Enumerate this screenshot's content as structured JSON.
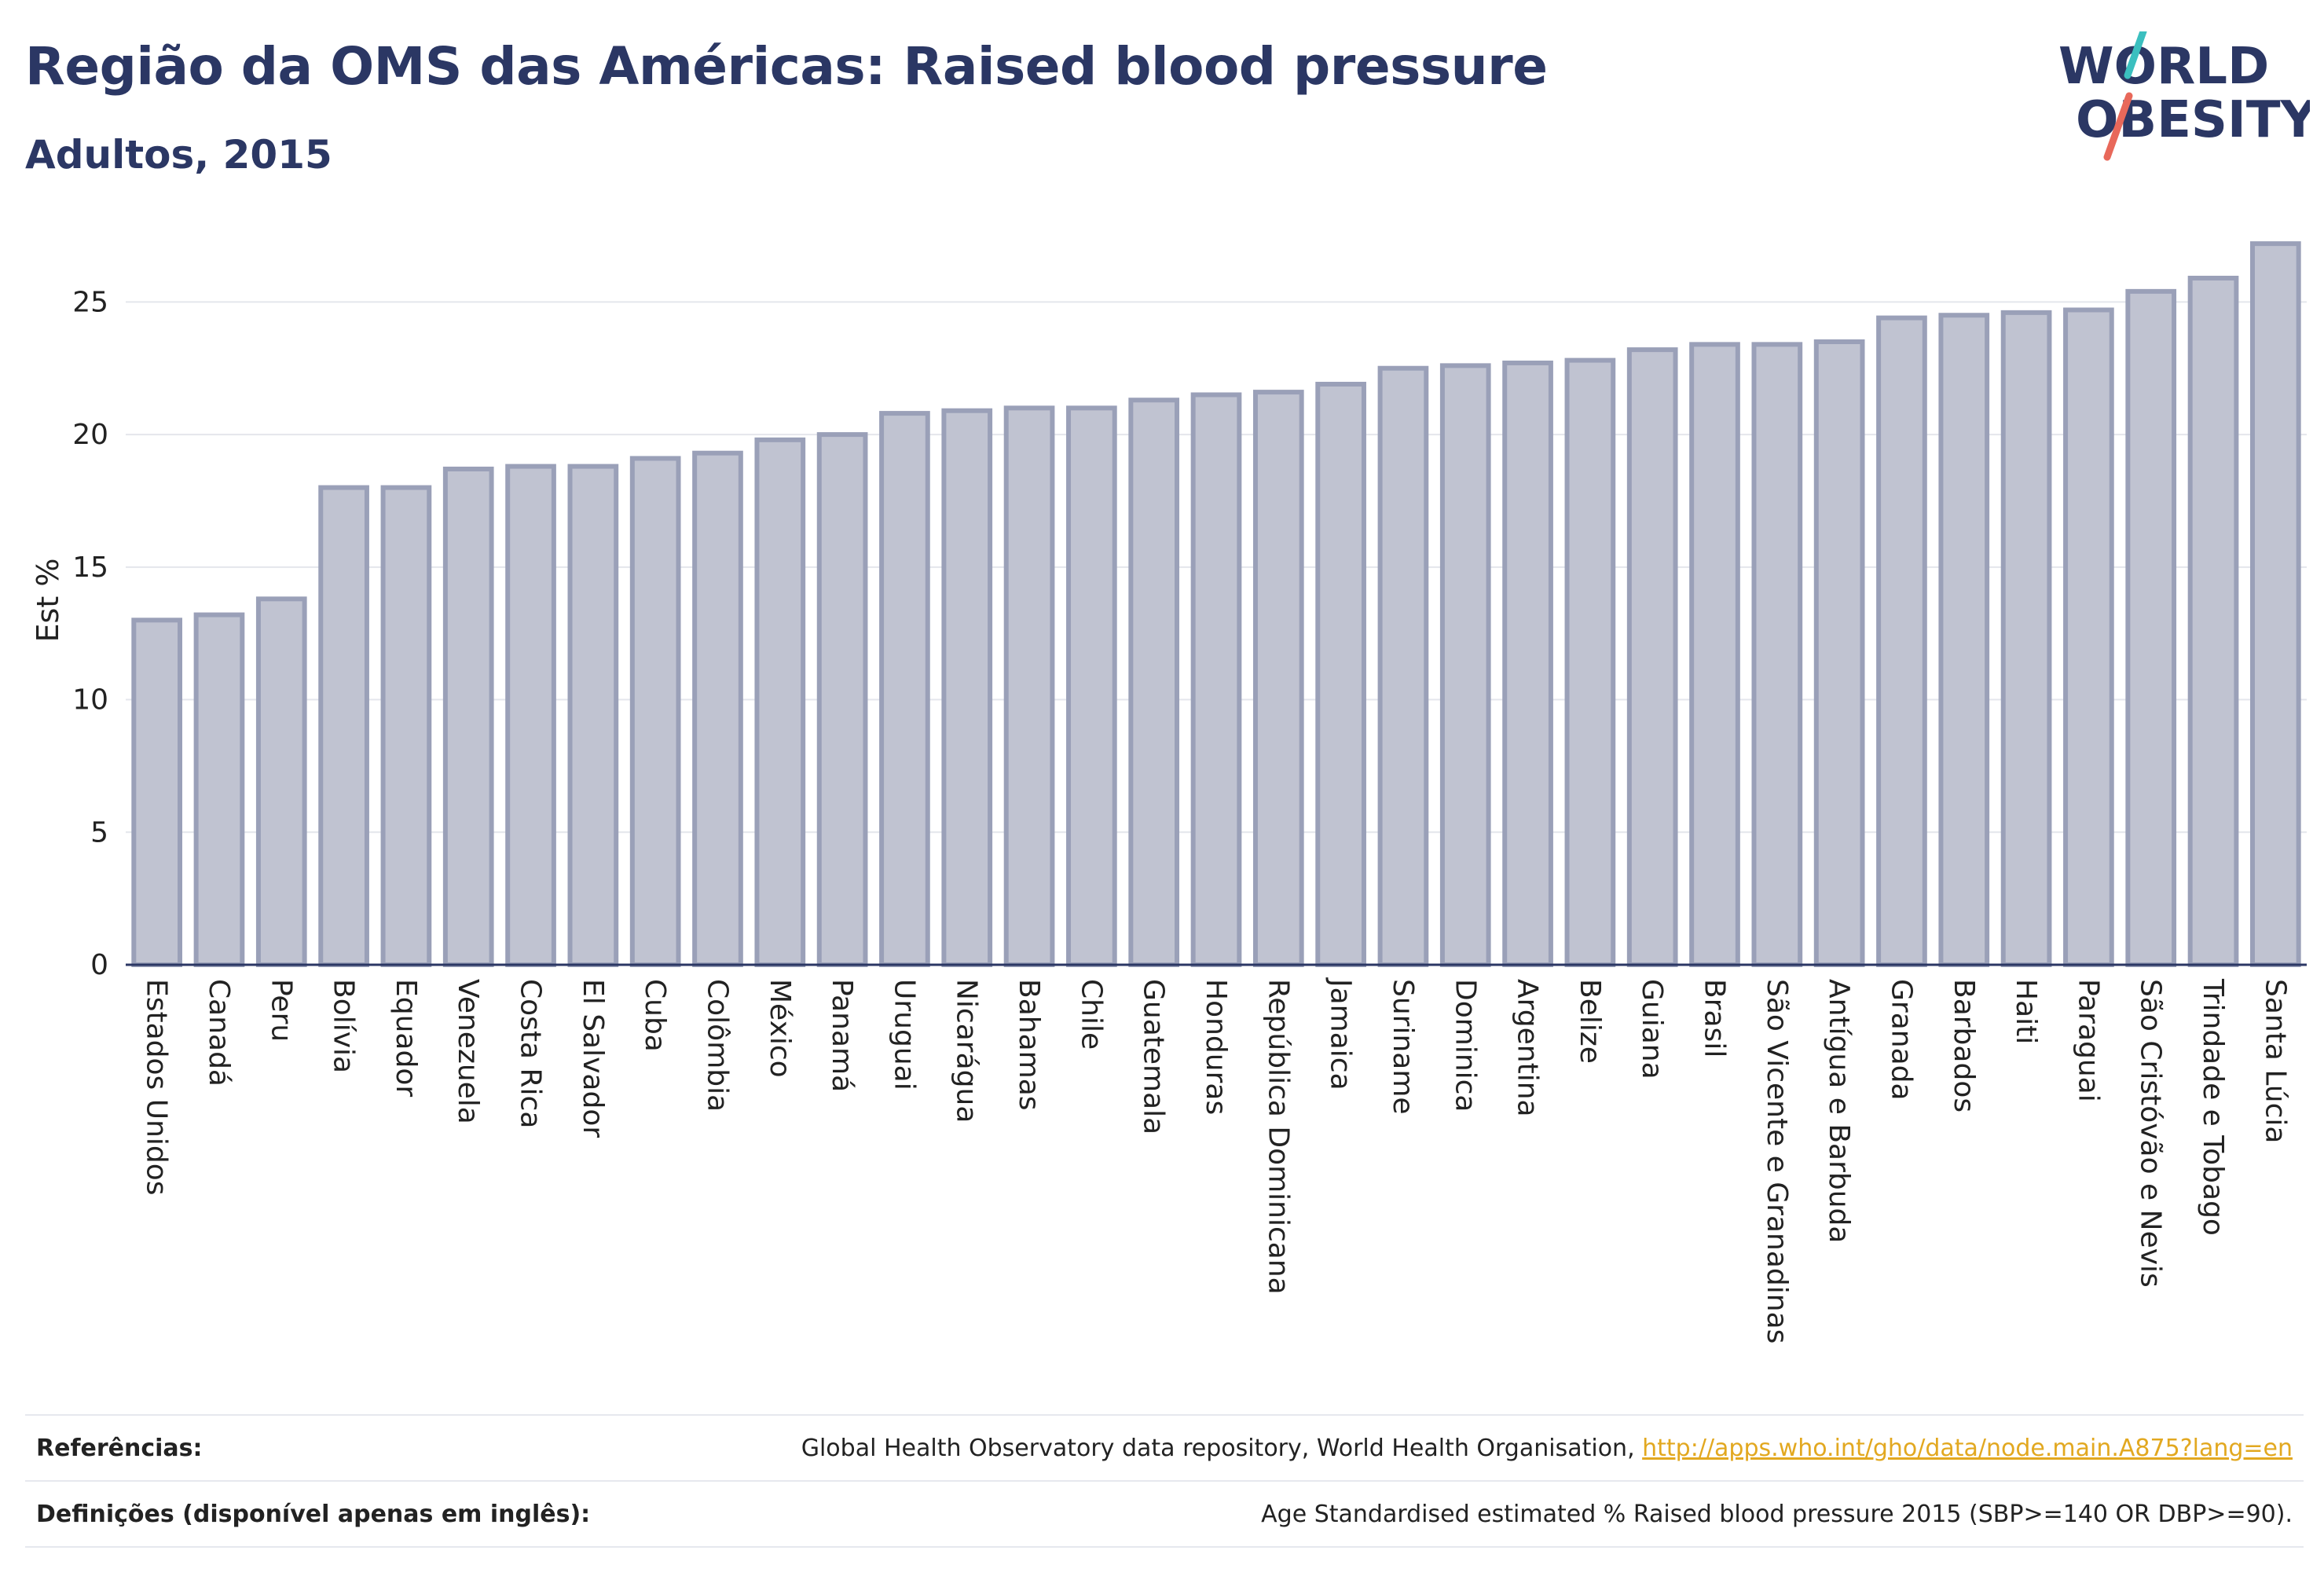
{
  "header": {
    "title": "Região da OMS das Américas: Raised blood pressure",
    "subtitle": "Adultos, 2015"
  },
  "logo": {
    "line1": "WORLD",
    "line2": "OBESITY",
    "accent_teal": "#3bbfbf",
    "accent_coral": "#e8685a"
  },
  "colors": {
    "text": "#2b3764",
    "bar_fill": "#c0c3d1",
    "bar_stroke": "#9aa0b8",
    "link": "#e2a820"
  },
  "chart_data": {
    "type": "bar",
    "title": "Região da OMS das Américas: Raised blood pressure",
    "subtitle": "Adultos, 2015",
    "ylabel": "Est %",
    "xlabel": "",
    "ylim": [
      0,
      27.5
    ],
    "yticks": [
      0,
      5,
      10,
      15,
      20,
      25
    ],
    "grid": true,
    "categories": [
      "Estados Unidos",
      "Canadá",
      "Peru",
      "Bolívia",
      "Equador",
      "Venezuela",
      "Costa Rica",
      "El Salvador",
      "Cuba",
      "Colômbia",
      "México",
      "Panamá",
      "Uruguai",
      "Nicarágua",
      "Bahamas",
      "Chile",
      "Guatemala",
      "Honduras",
      "República Dominicana",
      "Jamaica",
      "Suriname",
      "Dominica",
      "Argentina",
      "Belize",
      "Guiana",
      "Brasil",
      "São Vicente e Granadinas",
      "Antígua e Barbuda",
      "Granada",
      "Barbados",
      "Haiti",
      "Paraguai",
      "São Cristóvão e Nevis",
      "Trindade e Tobago",
      "Santa Lúcia"
    ],
    "values": [
      13.0,
      13.2,
      13.8,
      18.0,
      18.0,
      18.7,
      18.8,
      18.8,
      19.1,
      19.3,
      19.8,
      20.0,
      20.8,
      20.9,
      21.0,
      21.0,
      21.3,
      21.5,
      21.6,
      21.9,
      22.5,
      22.6,
      22.7,
      22.8,
      23.2,
      23.4,
      23.4,
      23.5,
      24.4,
      24.5,
      24.6,
      24.7,
      25.4,
      25.9,
      27.2
    ]
  },
  "footer": {
    "references_label": "Referências:",
    "references_text": "Global Health Observatory data repository, World Health Organisation, ",
    "references_link": "http://apps.who.int/gho/data/node.main.A875?lang=en",
    "definitions_label": "Definições (disponível apenas em inglês):",
    "definitions_text": "Age Standardised estimated % Raised blood pressure 2015 (SBP>=140 OR DBP>=90)."
  }
}
